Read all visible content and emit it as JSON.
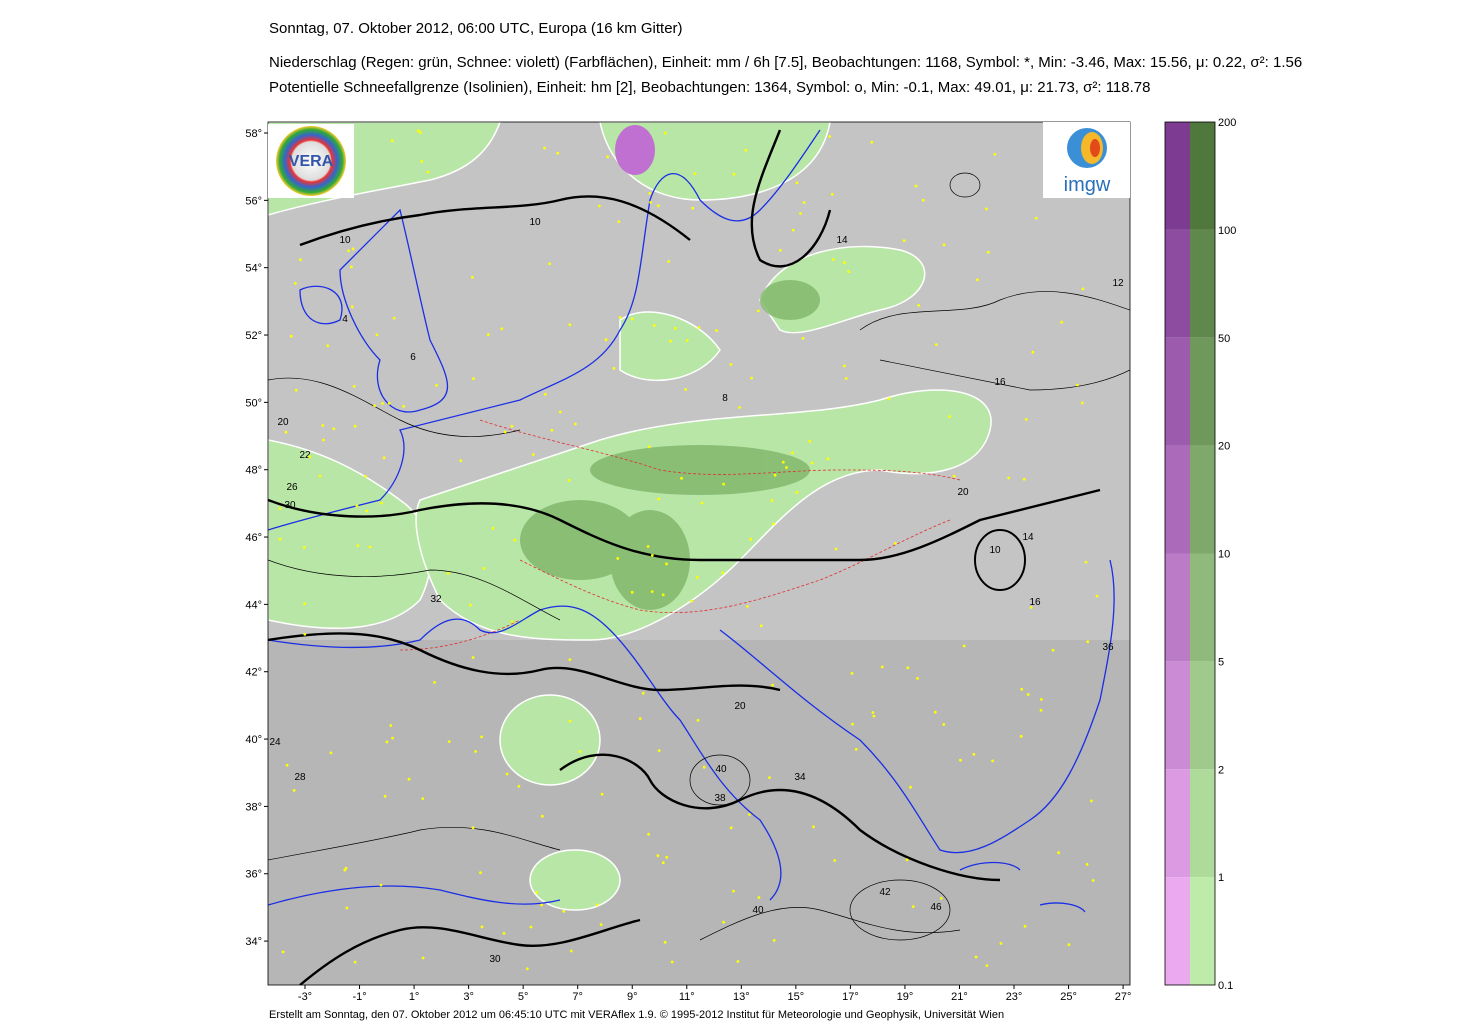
{
  "header": {
    "title": "Sonntag, 07. Oktober 2012, 06:00 UTC, Europa (16 km Gitter)",
    "line1": "Niederschlag (Regen: grün, Schnee: violett) (Farbflächen), Einheit: mm / 6h [7.5], Beobachtungen: 1168, Symbol: *, Min: -3.46, Max: 15.56,  μ: 0.22, σ²: 1.56",
    "line2": "Potentielle Schneefallgrenze (Isolinien), Einheit: hm [2], Beobachtungen: 1364, Symbol: o, Min: -0.1, Max: 49.01,  μ: 21.73, σ²: 118.78"
  },
  "map": {
    "lat_ticks": [
      {
        "value": 58,
        "label": "58°"
      },
      {
        "value": 56,
        "label": "56°"
      },
      {
        "value": 54,
        "label": "54°"
      },
      {
        "value": 52,
        "label": "52°"
      },
      {
        "value": 50,
        "label": "50°"
      },
      {
        "value": 48,
        "label": "48°"
      },
      {
        "value": 46,
        "label": "46°"
      },
      {
        "value": 44,
        "label": "44°"
      },
      {
        "value": 42,
        "label": "42°"
      },
      {
        "value": 40,
        "label": "40°"
      },
      {
        "value": 38,
        "label": "38°"
      },
      {
        "value": 36,
        "label": "36°"
      },
      {
        "value": 34,
        "label": "34°"
      }
    ],
    "lon_ticks": [
      {
        "value": -3,
        "label": "-3°"
      },
      {
        "value": -1,
        "label": "-1°"
      },
      {
        "value": 1,
        "label": "1°"
      },
      {
        "value": 3,
        "label": "3°"
      },
      {
        "value": 5,
        "label": "5°"
      },
      {
        "value": 7,
        "label": "7°"
      },
      {
        "value": 9,
        "label": "9°"
      },
      {
        "value": 11,
        "label": "11°"
      },
      {
        "value": 13,
        "label": "13°"
      },
      {
        "value": 15,
        "label": "15°"
      },
      {
        "value": 17,
        "label": "17°"
      },
      {
        "value": 19,
        "label": "19°"
      },
      {
        "value": 21,
        "label": "21°"
      },
      {
        "value": 23,
        "label": "23°"
      },
      {
        "value": 25,
        "label": "25°"
      },
      {
        "value": 27,
        "label": "27°"
      }
    ],
    "contour_labels": [
      "10",
      "10",
      "14",
      "12",
      "20",
      "22",
      "26",
      "30",
      "32",
      "28",
      "24",
      "36",
      "40",
      "38",
      "40",
      "20",
      "16",
      "20",
      "10",
      "14",
      "42",
      "46",
      "30",
      "34",
      "16",
      "8",
      "6",
      "4"
    ]
  },
  "colorbar": {
    "labels": [
      "200",
      "100",
      "50",
      "20",
      "10",
      "5",
      "2",
      "1",
      "0.1"
    ]
  },
  "logos": {
    "vera": "VERA",
    "imgw": "imgw"
  },
  "footer": "Erstellt am Sonntag, den 07. Oktober 2012 um 06:45:10 UTC mit VERAflex 1.9.   © 1995-2012 Institut für Meteorologie und Geophysik, Universität Wien"
}
